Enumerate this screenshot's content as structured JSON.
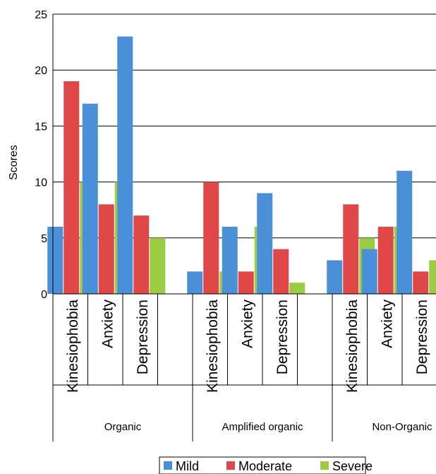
{
  "chart_data": {
    "type": "bar",
    "title": "",
    "ylabel": "Scores",
    "xlabel": "",
    "ylim": [
      0,
      25
    ],
    "yticks": [
      0,
      5,
      10,
      15,
      20,
      25
    ],
    "grid": true,
    "legend_position": "bottom",
    "groups": [
      {
        "label": "Organic",
        "categories": [
          "Kinesiophobia",
          "Anxiety",
          "Depression"
        ]
      },
      {
        "label": "Amplified organic",
        "categories": [
          "Kinesiophobia",
          "Anxiety",
          "Depression"
        ]
      },
      {
        "label": "Non-Organic",
        "categories": [
          "Kinesiophobia",
          "Anxiety",
          "Depression"
        ]
      }
    ],
    "series": [
      {
        "name": "Mild",
        "color": "#4a90d9",
        "values": [
          [
            6,
            17,
            23
          ],
          [
            2,
            6,
            9
          ],
          [
            3,
            4,
            11
          ]
        ]
      },
      {
        "name": "Moderate",
        "color": "#e04848",
        "values": [
          [
            19,
            8,
            7
          ],
          [
            10,
            2,
            4
          ],
          [
            8,
            6,
            2
          ]
        ]
      },
      {
        "name": "Severe",
        "color": "#9ccc44",
        "values": [
          [
            10,
            10,
            5
          ],
          [
            2,
            6,
            1
          ],
          [
            5,
            6,
            3
          ]
        ]
      }
    ]
  }
}
